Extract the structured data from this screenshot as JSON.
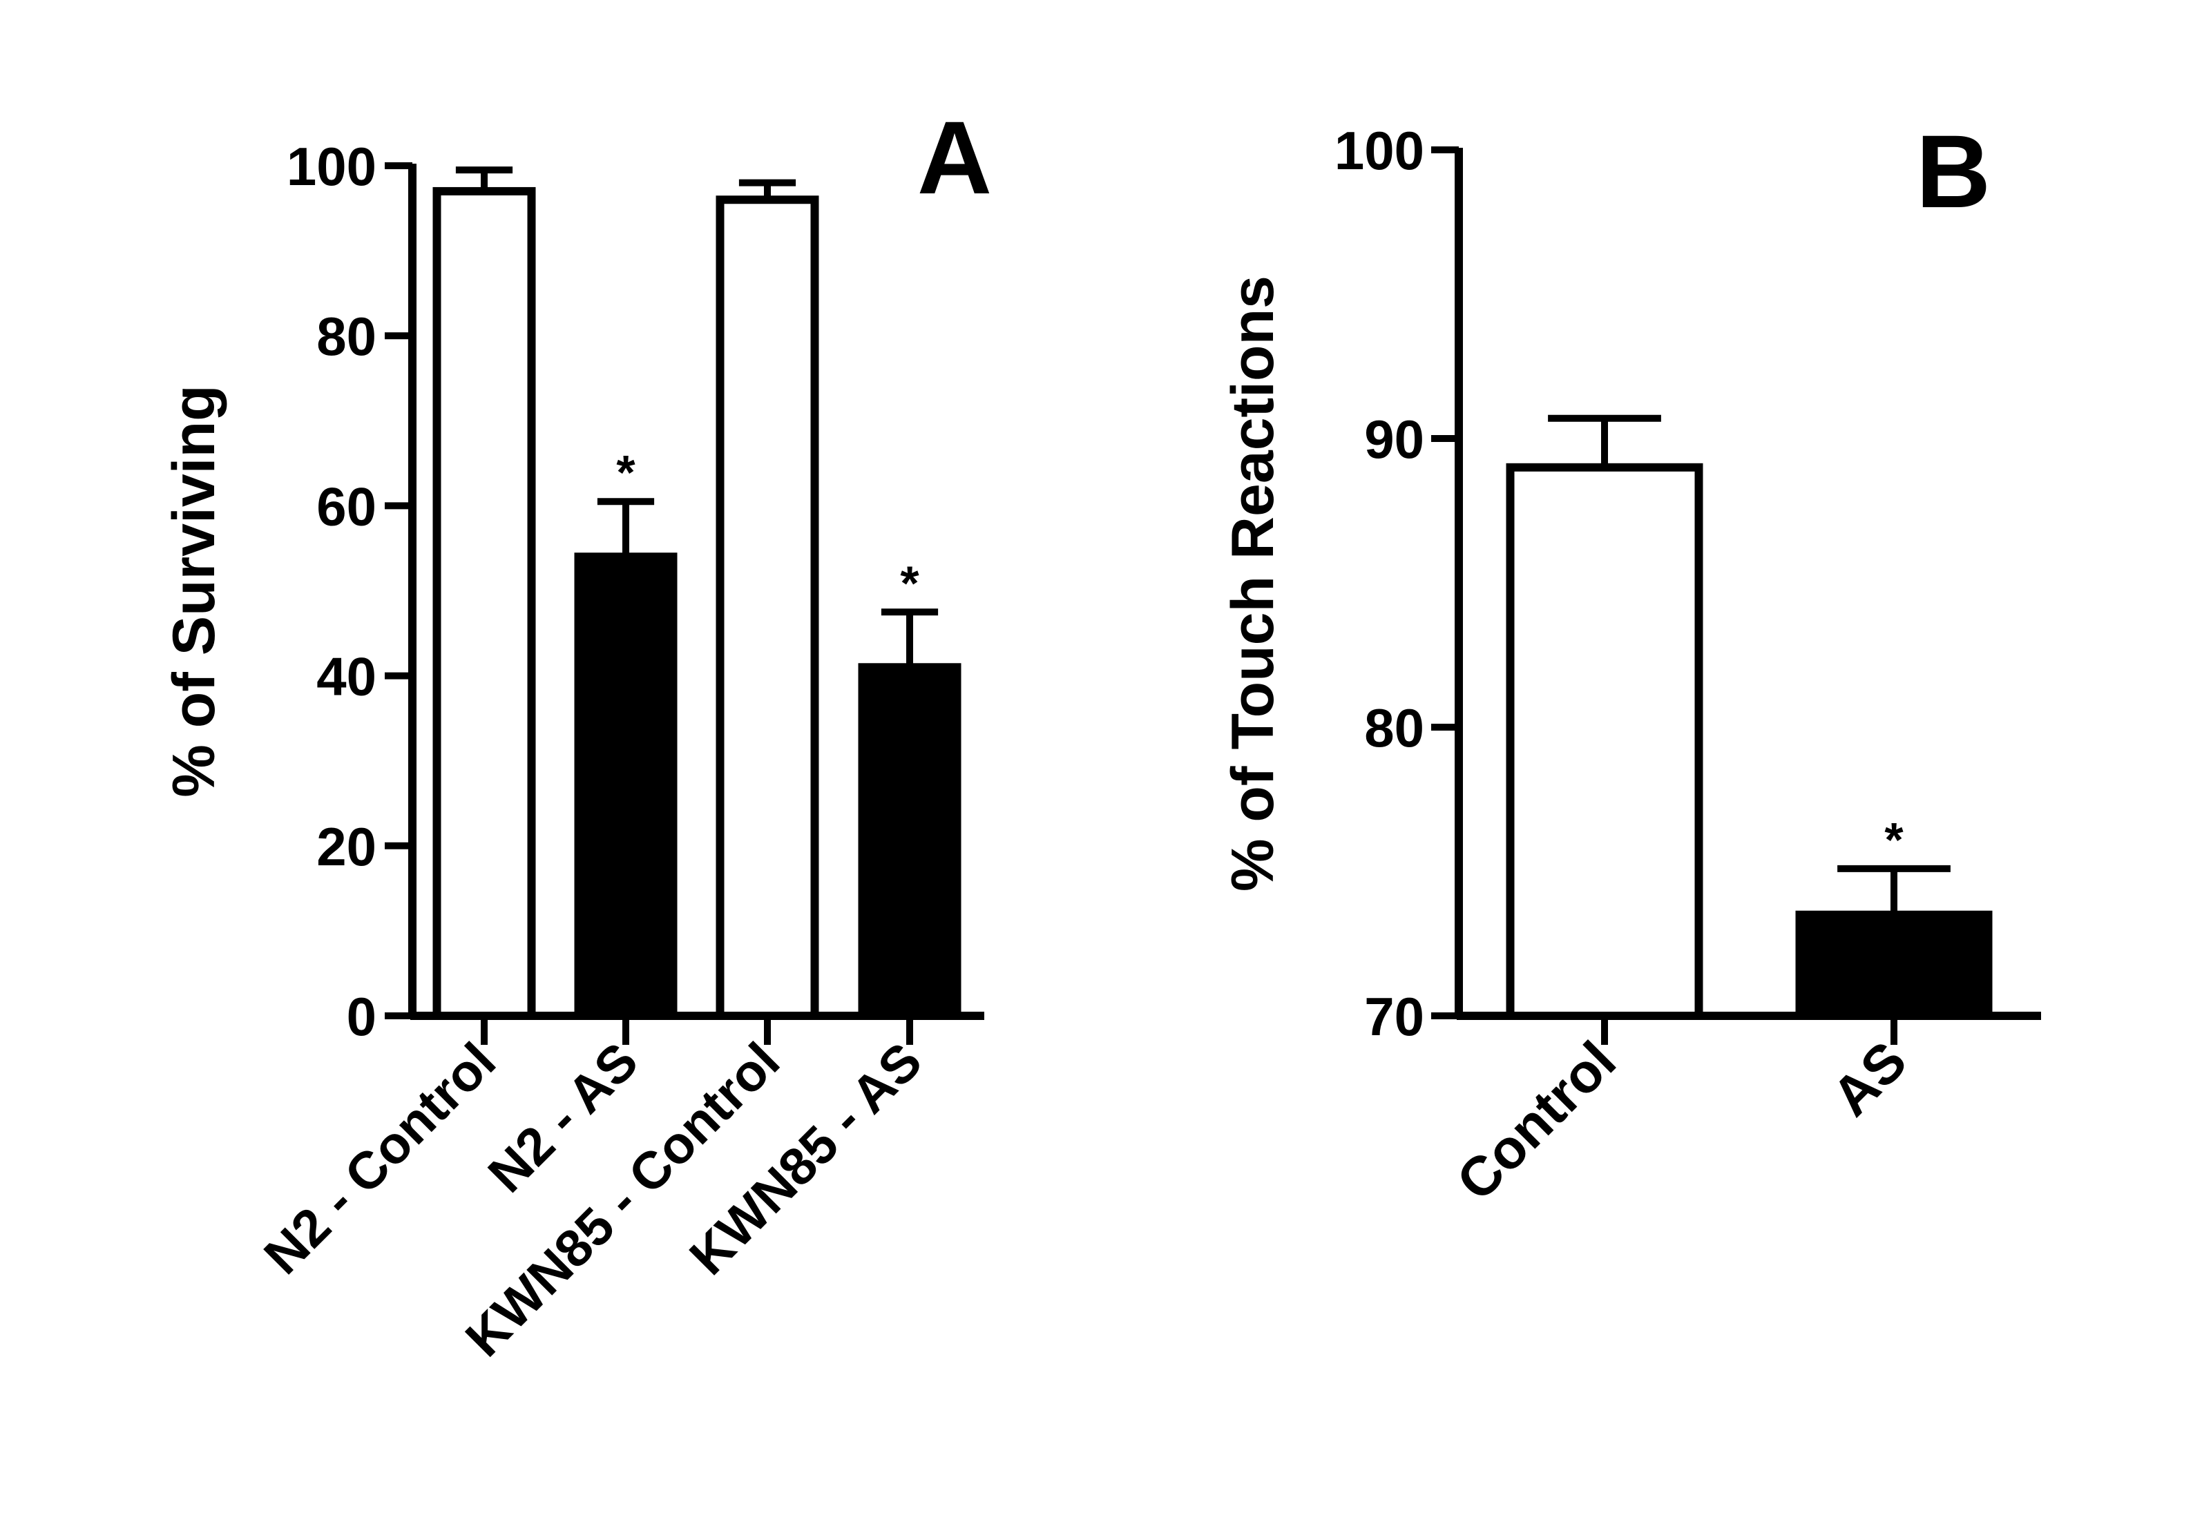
{
  "chart_data": [
    {
      "type": "bar",
      "panel_label": "A",
      "ylabel": "% of Surviving",
      "ylim": [
        0,
        100
      ],
      "yticks": [
        0,
        20,
        40,
        60,
        80,
        100
      ],
      "categories": [
        "N2 - Control",
        "N2 - AS",
        "KWN85 - Control",
        "KWN85 - AS"
      ],
      "values": [
        97,
        54,
        96,
        41
      ],
      "errors": [
        2.5,
        6.5,
        2,
        6.5
      ],
      "fills": [
        "white",
        "black",
        "white",
        "black"
      ],
      "significance": [
        "",
        "*",
        "",
        "*"
      ],
      "grid": false
    },
    {
      "type": "bar",
      "panel_label": "B",
      "ylabel": "% of Touch Reactions",
      "ylim": [
        70,
        100
      ],
      "yticks": [
        70,
        80,
        90,
        100
      ],
      "categories": [
        "Control",
        "AS"
      ],
      "values": [
        89,
        73.5
      ],
      "errors": [
        1.7,
        1.6
      ],
      "fills": [
        "white",
        "black"
      ],
      "significance": [
        "",
        "*"
      ],
      "grid": false
    }
  ],
  "colors": {
    "ink": "#000000",
    "background": "#ffffff"
  }
}
